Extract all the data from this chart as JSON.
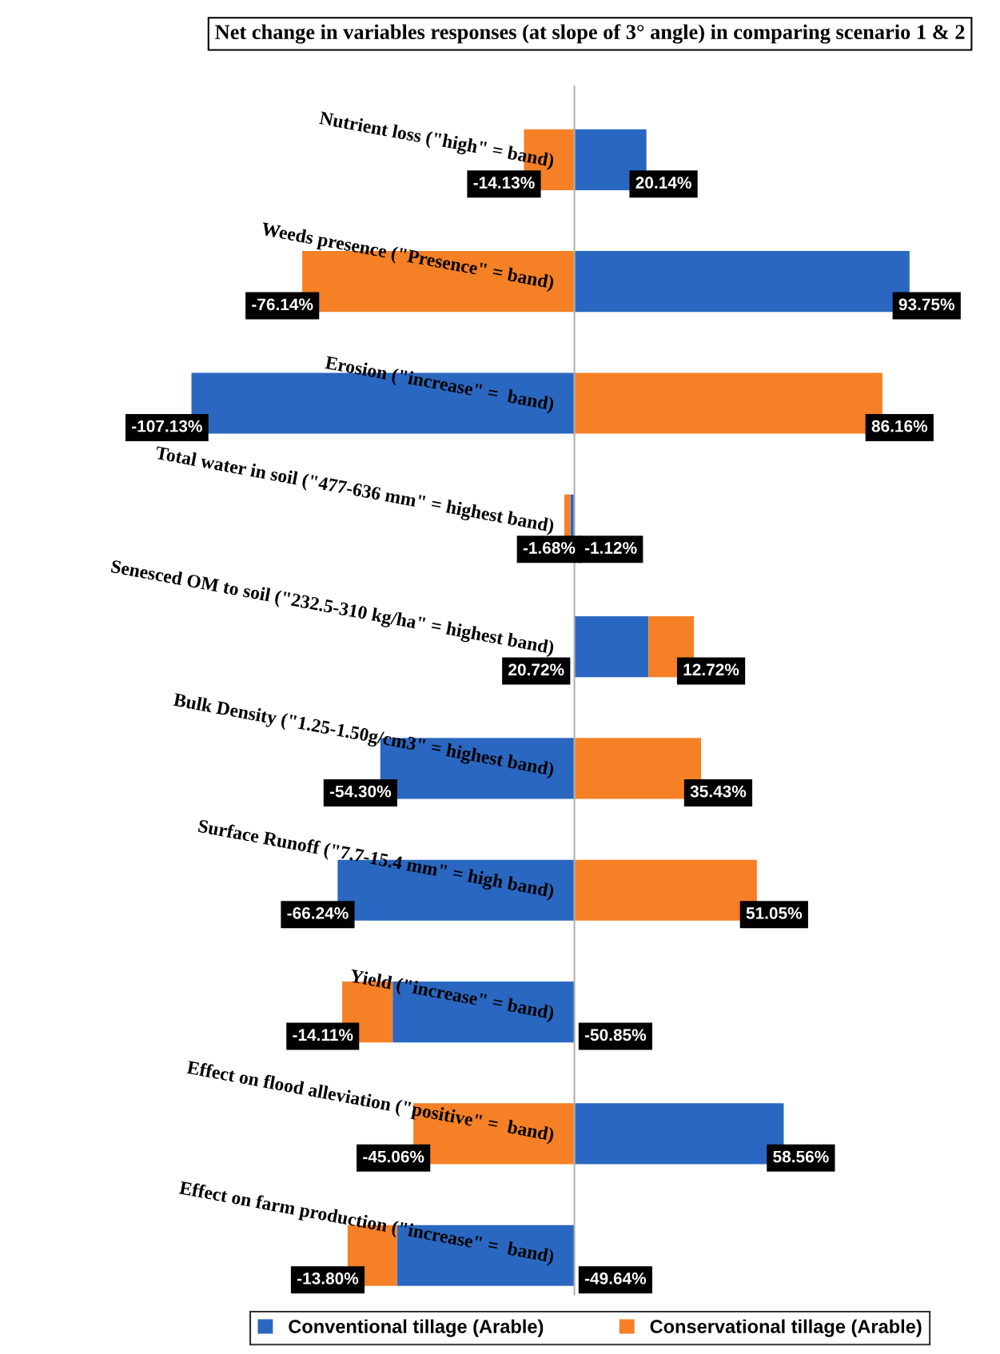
{
  "chart_data": {
    "type": "bar",
    "orientation": "horizontal",
    "stacked": true,
    "legend": "bottom",
    "title": "Net change in variables responses (at slope of 3° angle) in comparing scenario 1 & 2",
    "categories": [
      "Nutrient loss (\"high\" = band)",
      "Weeds presence (\"Presence\" = band)",
      "Erosion (\"increase\" =  band)",
      "Total water in soil (\"477-636 mm\" = highest band)",
      "Senesced OM to soil (\"232.5-310 kg/ha\" = highest band)",
      "Bulk Density (\"1.25-1.50g/cm3\" = highest band)",
      "Surface Runoff (\"7.7-15.4 mm\" = high band)",
      "Yield (\"increase\" = band)",
      "Effect on flood alleviation (\"positive\" =  band)",
      "Effect on farm production (\"increase\" =  band)"
    ],
    "series": [
      {
        "name": "Conventional tillage (Arable)",
        "color": "#2a67c0",
        "values": [
          20.14,
          93.75,
          -107.13,
          -1.12,
          20.72,
          -54.3,
          -66.24,
          -50.85,
          58.56,
          -49.64
        ],
        "value_labels": [
          "20.14%",
          "93.75%",
          "-107.13%",
          "-1.12%",
          "20.72%",
          "-54.30%",
          "-66.24%",
          "-50.85%",
          "58.56%",
          "-49.64%"
        ]
      },
      {
        "name": "Conservational tillage (Arable)",
        "color": "#f58025",
        "values": [
          -14.13,
          -76.14,
          86.16,
          -1.68,
          12.72,
          35.43,
          51.05,
          -14.11,
          -45.06,
          -13.8
        ],
        "value_labels": [
          "-14.13%",
          "-76.14%",
          "86.16%",
          "-1.68%",
          "12.72%",
          "35.43%",
          "51.05%",
          "-14.11%",
          "-45.06%",
          "-13.80%"
        ]
      }
    ]
  }
}
